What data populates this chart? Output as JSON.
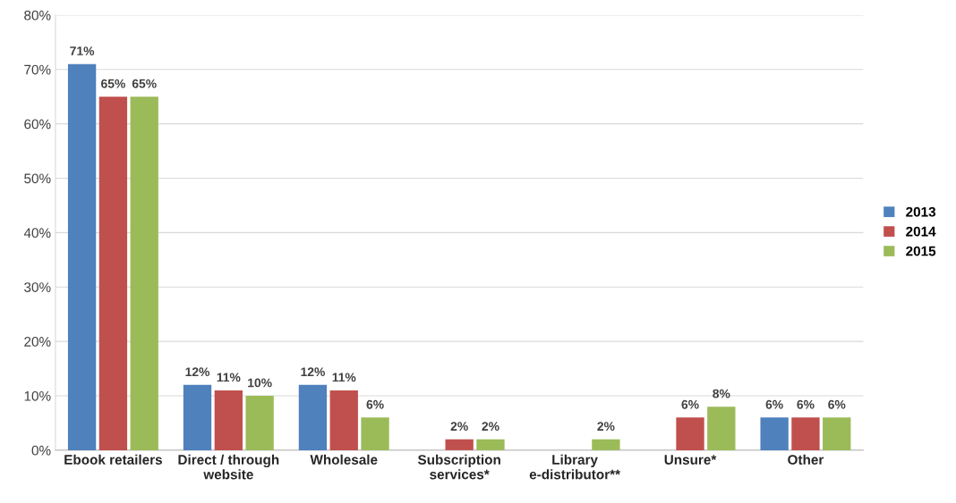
{
  "chart_data": {
    "type": "bar",
    "categories": [
      "Ebook retailers",
      "Direct / through\nwebsite",
      "Wholesale",
      "Subscription\nservices*",
      "Library\ne-distributor**",
      "Unsure*",
      "Other"
    ],
    "series": [
      {
        "name": "2013",
        "color": "#4f81bd",
        "values": [
          71,
          12,
          12,
          null,
          null,
          null,
          6
        ],
        "value_labels": [
          "71%",
          "12%",
          "12%",
          null,
          null,
          null,
          "6%"
        ]
      },
      {
        "name": "2014",
        "color": "#c0504d",
        "values": [
          65,
          11,
          11,
          2,
          null,
          6,
          6
        ],
        "value_labels": [
          "65%",
          "11%",
          "11%",
          "2%",
          null,
          "6%",
          "6%"
        ]
      },
      {
        "name": "2015",
        "color": "#9bbb59",
        "values": [
          65,
          10,
          6,
          2,
          2,
          8,
          6
        ],
        "value_labels": [
          "65%",
          "10%",
          "6%",
          "2%",
          "2%",
          "8%",
          "6%"
        ]
      }
    ],
    "ylim": [
      0,
      80
    ],
    "yticks": [
      {
        "value": 0,
        "label": "0%"
      },
      {
        "value": 10,
        "label": "10%"
      },
      {
        "value": 20,
        "label": "20%"
      },
      {
        "value": 30,
        "label": "30%"
      },
      {
        "value": 40,
        "label": "40%"
      },
      {
        "value": 50,
        "label": "50%"
      },
      {
        "value": 60,
        "label": "60%"
      },
      {
        "value": 70,
        "label": "70%"
      },
      {
        "value": 80,
        "label": "80%"
      }
    ],
    "grid": "y",
    "legend": "right"
  }
}
